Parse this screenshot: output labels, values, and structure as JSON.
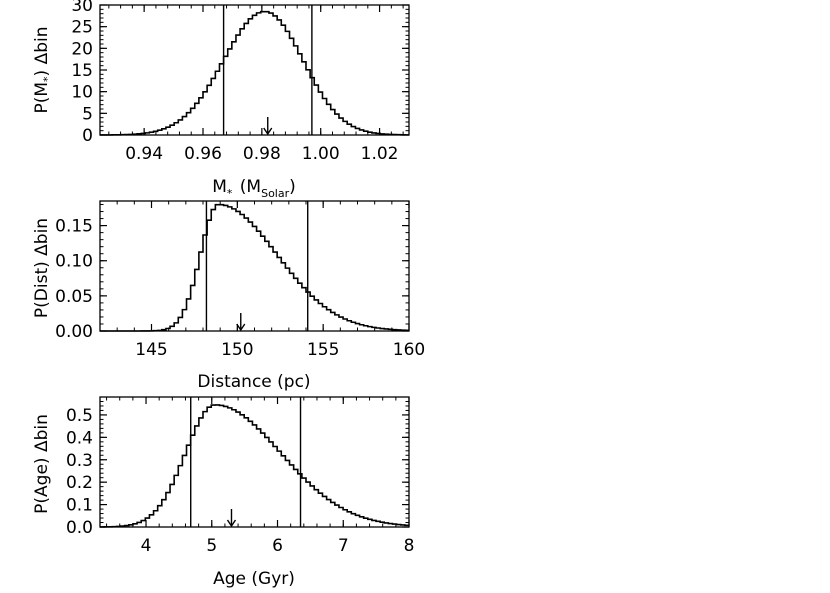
{
  "chart_data": [
    {
      "type": "histogram",
      "xlabel": "M",
      "xlabel_sub": "*",
      "xlabel_unit": "(M",
      "xlabel_unit_sub": "Solar",
      "xlabel_close": ")",
      "ylabel_main": "P(M",
      "ylabel_sub": "*",
      "ylabel_tail": ")  Δbin",
      "xlim": [
        0.925,
        1.03
      ],
      "ylim": [
        0,
        30
      ],
      "xticks": [
        "0.94",
        "0.96",
        "0.98",
        "1.00",
        "1.02"
      ],
      "xtick_values": [
        0.94,
        0.96,
        0.98,
        1.0,
        1.02
      ],
      "yticks": [
        "0",
        "5",
        "10",
        "15",
        "20",
        "25",
        "30"
      ],
      "ytick_values": [
        0,
        5,
        10,
        15,
        20,
        25,
        30
      ],
      "peak": 0.981,
      "sigma_left": 0.014,
      "sigma_right": 0.013,
      "amplitude": 28.5,
      "vlines": [
        0.967,
        0.997
      ],
      "arrow_at": 0.982
    },
    {
      "type": "histogram",
      "xlabel": "Distance (pc)",
      "ylabel_main": "P(Dist)  Δbin",
      "xlim": [
        142,
        160
      ],
      "ylim": [
        0,
        0.185
      ],
      "xticks": [
        "145",
        "150",
        "155",
        "160"
      ],
      "xtick_values": [
        145,
        150,
        155,
        160
      ],
      "yticks": [
        "0.00",
        "0.05",
        "0.10",
        "0.15"
      ],
      "ytick_values": [
        0,
        0.05,
        0.1,
        0.15
      ],
      "peak": 148.9,
      "sigma_left": 1.05,
      "sigma_right": 3.4,
      "amplitude": 0.18,
      "vlines": [
        148.2,
        154.1
      ],
      "arrow_at": 150.2
    },
    {
      "type": "histogram",
      "xlabel": "Age (Gyr)",
      "ylabel_main": "P(Age)  Δbin",
      "xlim": [
        3.3,
        8.0
      ],
      "ylim": [
        0,
        0.58
      ],
      "xticks": [
        "4",
        "5",
        "6",
        "7",
        "8"
      ],
      "xtick_values": [
        4,
        5,
        6,
        7,
        8
      ],
      "yticks": [
        "0.0",
        "0.1",
        "0.2",
        "0.3",
        "0.4",
        "0.5"
      ],
      "ytick_values": [
        0,
        0.1,
        0.2,
        0.3,
        0.4,
        0.5
      ],
      "peak": 5.05,
      "sigma_left": 0.45,
      "sigma_right": 1.0,
      "amplitude": 0.545,
      "vlines": [
        4.68,
        6.35
      ],
      "arrow_at": 5.3
    }
  ]
}
